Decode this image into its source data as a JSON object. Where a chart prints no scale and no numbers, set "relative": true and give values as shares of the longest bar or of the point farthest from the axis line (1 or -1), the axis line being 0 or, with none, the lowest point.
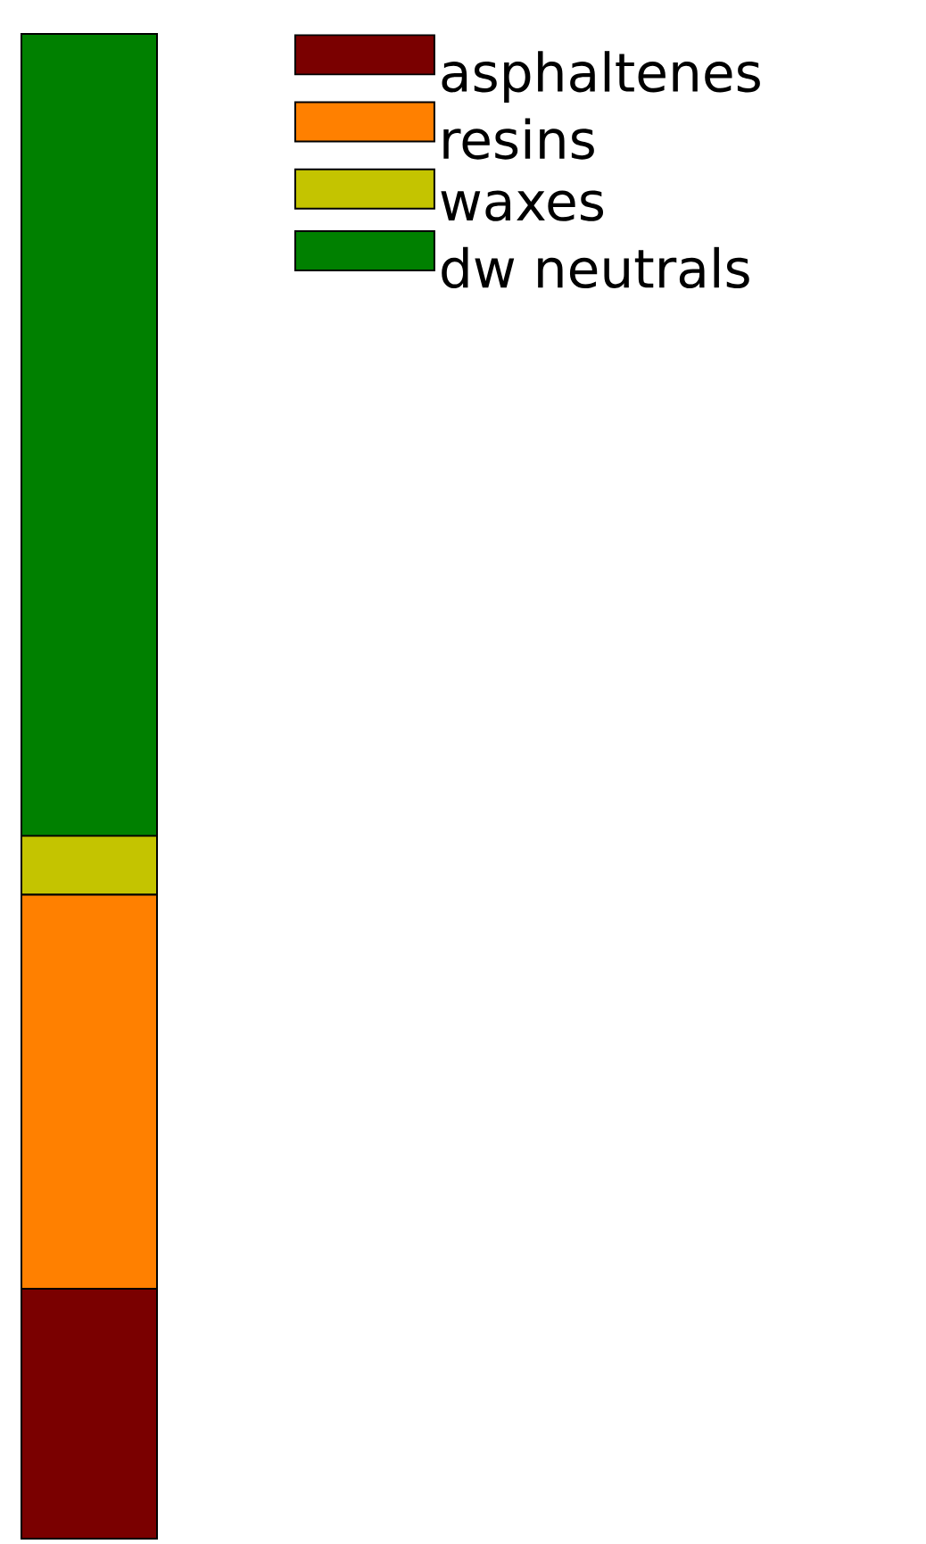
{
  "chart_data": {
    "type": "bar",
    "stacked": true,
    "relative": true,
    "categories": [
      null
    ],
    "legend": "top right",
    "series": [
      {
        "name": "asphaltenes",
        "color": "#7a0000",
        "values": [
          0.166
        ]
      },
      {
        "name": "resins",
        "color": "#ff8000",
        "values": [
          0.262
        ]
      },
      {
        "name": "waxes",
        "color": "#c4c400",
        "values": [
          0.039
        ]
      },
      {
        "name": "dw neutrals",
        "color": "#008000",
        "values": [
          0.533
        ]
      }
    ]
  }
}
